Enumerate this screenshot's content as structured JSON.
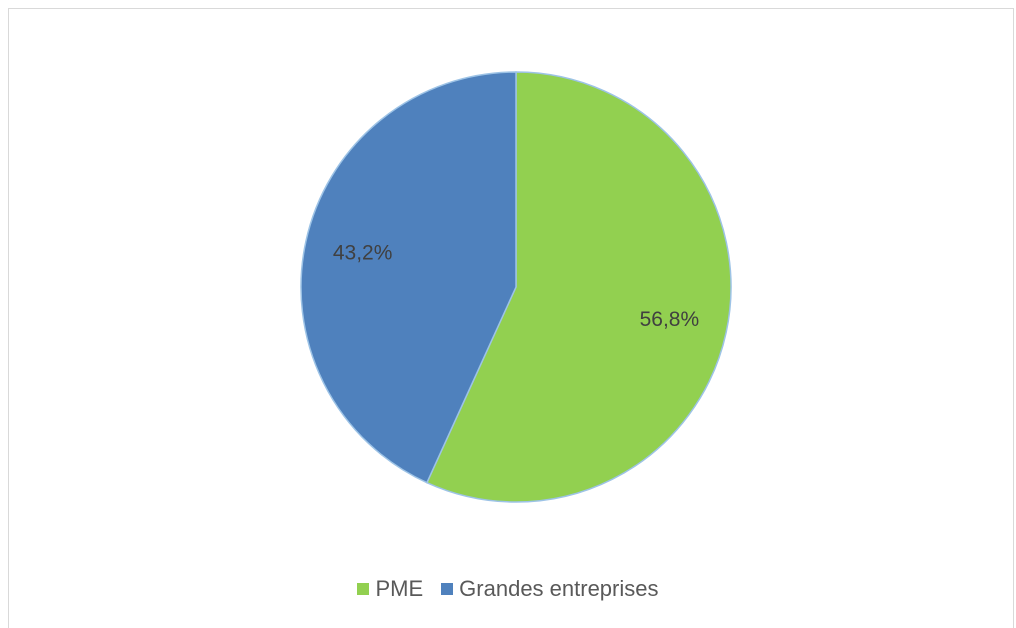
{
  "chart_data": {
    "type": "pie",
    "title": "",
    "series": [
      {
        "values": [
          56.8,
          43.2
        ]
      }
    ],
    "categories": [
      "PME",
      "Grandes entreprises"
    ],
    "slices": [
      {
        "label": "PME",
        "value": 56.8,
        "display": "56,8%",
        "color": "#92d050"
      },
      {
        "label": "Grandes entreprises",
        "value": 43.2,
        "display": "43,2%",
        "color": "#4f81bd"
      }
    ],
    "legend_position": "bottom",
    "slice_border_color": "#9dc3e6"
  }
}
